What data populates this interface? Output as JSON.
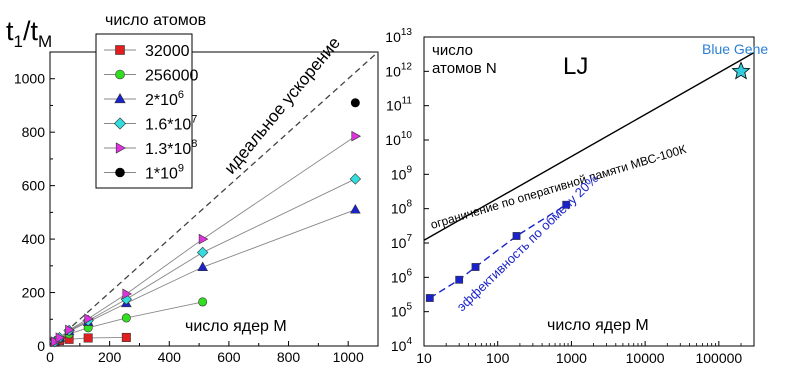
{
  "chart_data": [
    {
      "type": "scatter",
      "title": "",
      "ylabel": "t1/tM",
      "ylabel_main": "t",
      "ylabel_sub1": "1",
      "ylabel_sub2": "M",
      "xlabel": "число ядер M",
      "legend_title": "число атомов",
      "legend_position": "top-left",
      "xlim": [
        0,
        1100
      ],
      "ylim": [
        0,
        1100
      ],
      "x_ticks": [
        0,
        200,
        400,
        600,
        800,
        1000
      ],
      "y_ticks": [
        0,
        200,
        400,
        600,
        800,
        1000
      ],
      "ideal_label": "идеальное ускорение",
      "ideal_line": {
        "x": [
          0,
          1100
        ],
        "y": [
          0,
          1100
        ]
      },
      "series": [
        {
          "name": "32000",
          "marker": "square",
          "color": "#e02020",
          "x": [
            16,
            32,
            64,
            128,
            256
          ],
          "y": [
            14,
            20,
            25,
            30,
            32
          ]
        },
        {
          "name": "256000",
          "marker": "circle",
          "color": "#33dd22",
          "x": [
            16,
            32,
            64,
            128,
            256,
            512
          ],
          "y": [
            15,
            27,
            45,
            68,
            105,
            165
          ]
        },
        {
          "name": "2*10^6",
          "legend_base": "2*10",
          "legend_exp": "6",
          "marker": "triangle-up",
          "color": "#1a22cc",
          "x": [
            16,
            32,
            64,
            128,
            256,
            512,
            1024
          ],
          "y": [
            16,
            30,
            55,
            90,
            160,
            295,
            510
          ]
        },
        {
          "name": "1.6*10^7",
          "legend_base": "1.6*10",
          "legend_exp": "7",
          "marker": "diamond",
          "color": "#33dddd",
          "x": [
            16,
            32,
            64,
            128,
            256,
            512,
            1024
          ],
          "y": [
            16,
            31,
            58,
            95,
            175,
            350,
            625
          ]
        },
        {
          "name": "1.3*10^8",
          "legend_base": "1.3*10",
          "legend_exp": "8",
          "marker": "triangle-right",
          "color": "#dd33dd",
          "x": [
            16,
            32,
            64,
            128,
            256,
            512,
            1024
          ],
          "y": [
            16,
            31,
            60,
            102,
            195,
            400,
            785
          ]
        },
        {
          "name": "1*10^9",
          "legend_base": "1*10",
          "legend_exp": "9",
          "marker": "circle",
          "color": "#000000",
          "x": [
            1024
          ],
          "y": [
            910
          ]
        }
      ]
    },
    {
      "type": "scatter",
      "title": "LJ",
      "ylabel": "число атомов N",
      "ylabel_line1": "число",
      "ylabel_line2": "атомов N",
      "xlabel": "число ядер M",
      "x_scale": "log",
      "y_scale": "log",
      "xlim": [
        10,
        300000
      ],
      "ylim": [
        10000,
        10000000000000
      ],
      "x_ticks": [
        10,
        100,
        1000,
        10000,
        100000
      ],
      "x_tick_labels": [
        "10",
        "100",
        "1000",
        "10000",
        "100000"
      ],
      "y_ticks": [
        4,
        5,
        6,
        7,
        8,
        9,
        10,
        11,
        12,
        13
      ],
      "y_tick_base": "10",
      "limit_label": "ограничение по оперативной памяти МВС-100К",
      "limit_line": {
        "x": [
          10,
          300000
        ],
        "y": [
          12000000,
          3500000000000
        ]
      },
      "efficiency_label": "эффективность по обмену 20%",
      "series": [
        {
          "name": "эффективность по обмену 20%",
          "marker": "square",
          "color": "#1a22cc",
          "x": [
            12,
            30,
            50,
            180,
            850
          ],
          "y": [
            250000,
            850000,
            2000000,
            16000000,
            130000000
          ]
        }
      ],
      "highlight": {
        "label": "Blue Gene",
        "x": 200000,
        "y": 1000000000000,
        "color": "#2a7fd4",
        "marker_color": "#33ccdd"
      }
    }
  ]
}
